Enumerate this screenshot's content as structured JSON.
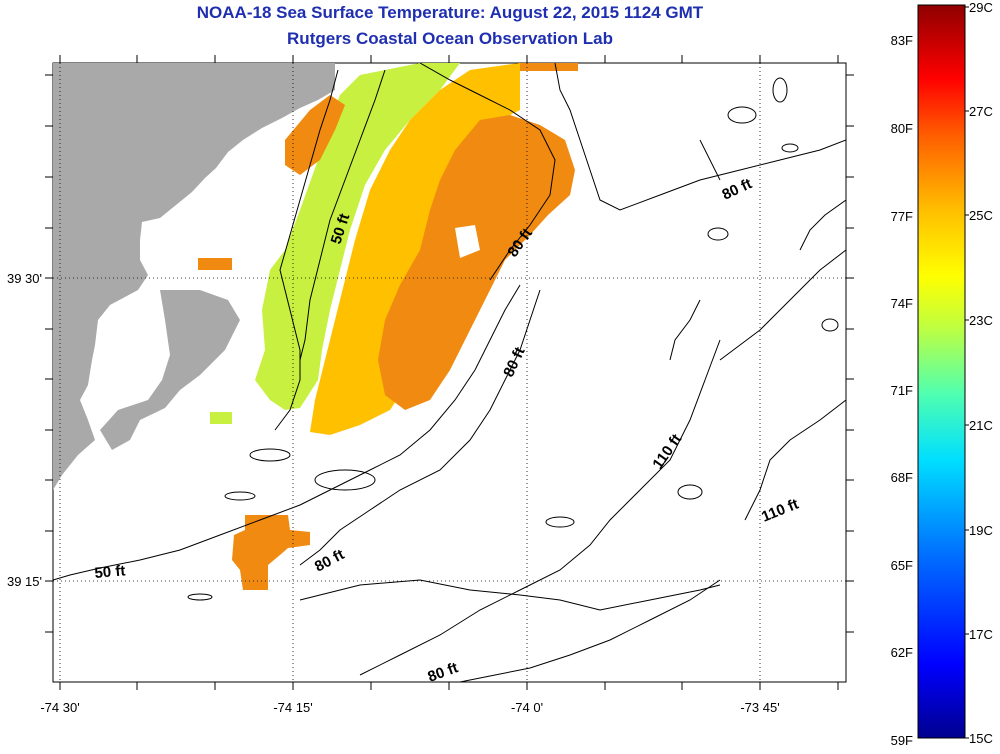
{
  "title": "NOAA-18 Sea Surface Temperature:  August 22, 2015 1124 GMT",
  "subtitle": "Rutgers Coastal Ocean Observation Lab",
  "axes": {
    "lon_ticks": [
      "-74 30'",
      "-74 15'",
      "-74 0'",
      "-73 45'"
    ],
    "lat_ticks": [
      "39 30'",
      "39 15'"
    ]
  },
  "contour_labels": [
    "50 ft",
    "80 ft",
    "80 ft",
    "80 ft",
    "110 ft",
    "110 ft",
    "50 ft",
    "80 ft",
    "80 ft"
  ],
  "colorbar": {
    "fahrenheit": [
      "83F",
      "80F",
      "77F",
      "74F",
      "71F",
      "68F",
      "65F",
      "62F",
      "59F"
    ],
    "celsius": [
      "29C",
      "27C",
      "25C",
      "23C",
      "21C",
      "19C",
      "17C",
      "15C"
    ],
    "range_c": [
      15,
      29
    ],
    "colors": [
      "#00008f",
      "#0000ff",
      "#006fff",
      "#00dfff",
      "#50ffaf",
      "#bfff40",
      "#ffff00",
      "#ffbf00",
      "#ff6000",
      "#ff0000",
      "#8f0000"
    ]
  },
  "colors": {
    "land": "#a9a9a9",
    "warm_sst": "#f08a10",
    "mid_sst": "#ffc000",
    "cool_sst": "#c8f040",
    "title": "#1f2fb0"
  }
}
